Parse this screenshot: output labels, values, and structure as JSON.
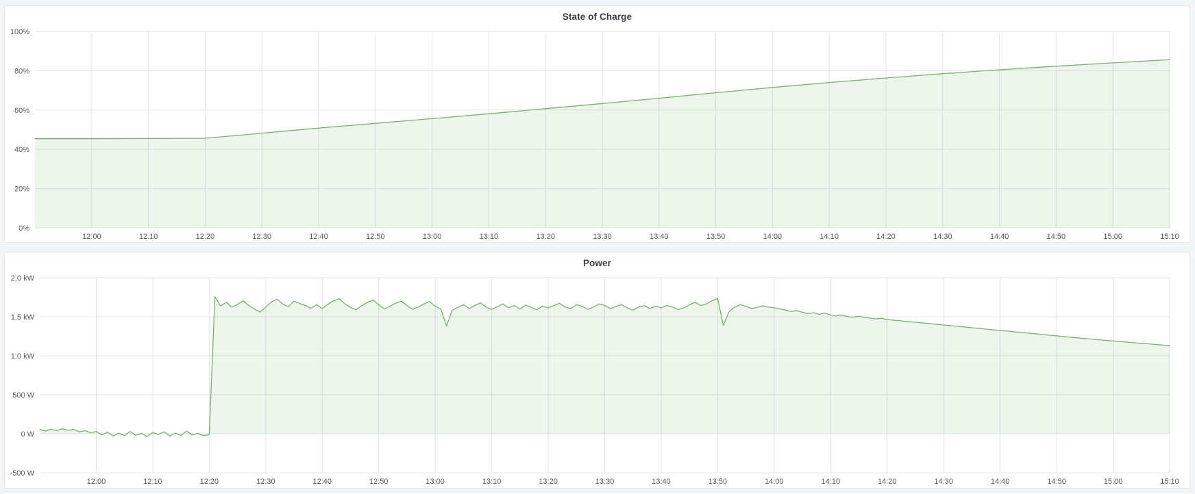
{
  "app": {
    "kind": "monitoring-dashboard",
    "background": "#f4f5f6",
    "panel_background": "#ffffff",
    "panel_border": "#e4e5e7"
  },
  "colors": {
    "series_green": "#74b36a",
    "series_fill": "rgba(116,179,106,0.13)",
    "gridline": "#e2e3e5",
    "tick_text": "#54565c",
    "title_text": "#3b3f46"
  },
  "chart_data": [
    {
      "type": "area",
      "title": "State of Charge",
      "unit": "percent",
      "legend": "none",
      "grid": true,
      "x_axis": {
        "start_min": -10,
        "end_min": 190,
        "tick_start_min": 0,
        "tick_step_min": 10,
        "tick_labels": [
          "12:00",
          "12:10",
          "12:20",
          "12:30",
          "12:40",
          "12:50",
          "13:00",
          "13:10",
          "13:20",
          "13:30",
          "13:40",
          "13:50",
          "14:00",
          "14:10",
          "14:20",
          "14:30",
          "14:40",
          "14:50",
          "15:00",
          "15:10"
        ]
      },
      "y_axis": {
        "min": 0,
        "max": 100,
        "ticks": [
          {
            "value": 0,
            "label": "0%"
          },
          {
            "value": 20,
            "label": "20%"
          },
          {
            "value": 40,
            "label": "40%"
          },
          {
            "value": 60,
            "label": "60%"
          },
          {
            "value": 80,
            "label": "80%"
          },
          {
            "value": 100,
            "label": "100%"
          }
        ]
      },
      "series": [
        {
          "name": "State of Charge",
          "color": "#74b36a",
          "fill_color": "rgba(116,179,106,0.13)",
          "fill_to": 0,
          "keypoints": [
            [
              -10,
              45.4
            ],
            [
              0,
              45.4
            ],
            [
              10,
              45.5
            ],
            [
              20,
              45.6
            ],
            [
              25,
              46.9
            ],
            [
              30,
              48.2
            ],
            [
              40,
              50.8
            ],
            [
              50,
              53.2
            ],
            [
              60,
              55.6
            ],
            [
              70,
              58.1
            ],
            [
              80,
              60.7
            ],
            [
              90,
              63.3
            ],
            [
              100,
              66.0
            ],
            [
              110,
              68.8
            ],
            [
              120,
              71.5
            ],
            [
              130,
              74.0
            ],
            [
              140,
              76.3
            ],
            [
              150,
              78.5
            ],
            [
              160,
              80.5
            ],
            [
              170,
              82.3
            ],
            [
              180,
              84.0
            ],
            [
              190,
              85.6
            ]
          ]
        }
      ]
    },
    {
      "type": "area",
      "title": "Power",
      "unit": "watts",
      "legend": "none",
      "grid": true,
      "x_axis": {
        "start_min": -10,
        "end_min": 190,
        "tick_start_min": 0,
        "tick_step_min": 10,
        "tick_labels": [
          "12:00",
          "12:10",
          "12:20",
          "12:30",
          "12:40",
          "12:50",
          "13:00",
          "13:10",
          "13:20",
          "13:30",
          "13:40",
          "13:50",
          "14:00",
          "14:10",
          "14:20",
          "14:30",
          "14:40",
          "14:50",
          "15:00",
          "15:10"
        ]
      },
      "y_axis": {
        "min": -500,
        "max": 2000,
        "ticks": [
          {
            "value": -500,
            "label": "-500 W"
          },
          {
            "value": 0,
            "label": "0 W"
          },
          {
            "value": 500,
            "label": "500 W"
          },
          {
            "value": 1000,
            "label": "1.0 kW"
          },
          {
            "value": 1500,
            "label": "1.5 kW"
          },
          {
            "value": 2000,
            "label": "2.0 kW"
          }
        ]
      },
      "series": [
        {
          "name": "Power",
          "color": "#74b36a",
          "fill_color": "rgba(116,179,106,0.13)",
          "fill_to": 0,
          "t0_min": -10,
          "step_min": 1,
          "values": [
            55,
            35,
            60,
            40,
            65,
            45,
            55,
            25,
            40,
            15,
            30,
            -15,
            20,
            -30,
            10,
            -25,
            30,
            -20,
            5,
            -35,
            15,
            -10,
            25,
            -30,
            10,
            -20,
            35,
            -15,
            5,
            -25,
            -10,
            1760,
            1640,
            1685,
            1625,
            1660,
            1705,
            1645,
            1600,
            1560,
            1625,
            1690,
            1725,
            1665,
            1630,
            1700,
            1670,
            1645,
            1610,
            1655,
            1605,
            1660,
            1705,
            1730,
            1670,
            1620,
            1590,
            1645,
            1685,
            1715,
            1655,
            1600,
            1635,
            1675,
            1700,
            1645,
            1595,
            1625,
            1665,
            1695,
            1635,
            1600,
            1380,
            1585,
            1620,
            1655,
            1605,
            1645,
            1680,
            1625,
            1595,
            1630,
            1665,
            1615,
            1645,
            1600,
            1650,
            1620,
            1590,
            1635,
            1615,
            1645,
            1675,
            1625,
            1605,
            1655,
            1635,
            1595,
            1625,
            1665,
            1645,
            1605,
            1635,
            1655,
            1615,
            1585,
            1625,
            1645,
            1605,
            1635,
            1615,
            1645,
            1625,
            1595,
            1615,
            1655,
            1685,
            1645,
            1665,
            1705,
            1735,
            1390,
            1565,
            1625,
            1655,
            1635,
            1605,
            1620,
            1640,
            1625,
            1615,
            1602,
            1585,
            1568,
            1578,
            1558,
            1542,
            1552,
            1532,
            1548,
            1522,
            1512,
            1524,
            1502,
            1496,
            1508,
            1492,
            1482,
            1474,
            1480,
            1465,
            1458,
            1451,
            1444,
            1437,
            1430,
            1423,
            1416,
            1409,
            1402,
            1395,
            1388,
            1381,
            1374,
            1367,
            1360,
            1353,
            1346,
            1339,
            1332,
            1325,
            1318,
            1311,
            1304,
            1297,
            1290,
            1283,
            1276,
            1269,
            1262,
            1255,
            1248,
            1241,
            1234,
            1228,
            1221,
            1215,
            1208,
            1202,
            1196,
            1190,
            1184,
            1178,
            1172,
            1166,
            1160,
            1154,
            1148,
            1142,
            1136,
            1130
          ]
        }
      ]
    }
  ]
}
